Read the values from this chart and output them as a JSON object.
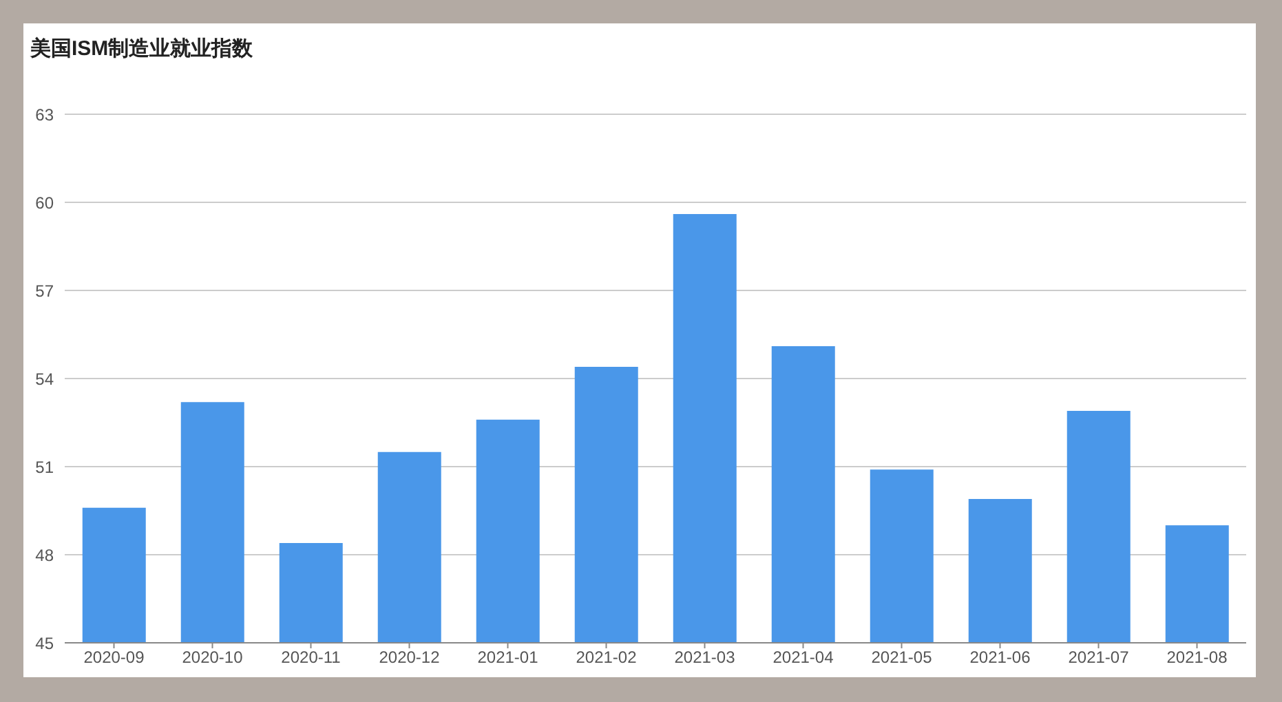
{
  "chart_data": {
    "type": "bar",
    "title": "美国ISM制造业就业指数",
    "categories": [
      "2020-09",
      "2020-10",
      "2020-11",
      "2020-12",
      "2021-01",
      "2021-02",
      "2021-03",
      "2021-04",
      "2021-05",
      "2021-06",
      "2021-07",
      "2021-08"
    ],
    "values": [
      49.6,
      53.2,
      48.4,
      51.5,
      52.6,
      54.4,
      59.6,
      55.1,
      50.9,
      49.9,
      52.9,
      49.0
    ],
    "color": "#4a97e9",
    "ylim": [
      45,
      63
    ],
    "yticks": [
      45,
      48,
      51,
      54,
      57,
      60,
      63
    ],
    "grid": "y"
  }
}
